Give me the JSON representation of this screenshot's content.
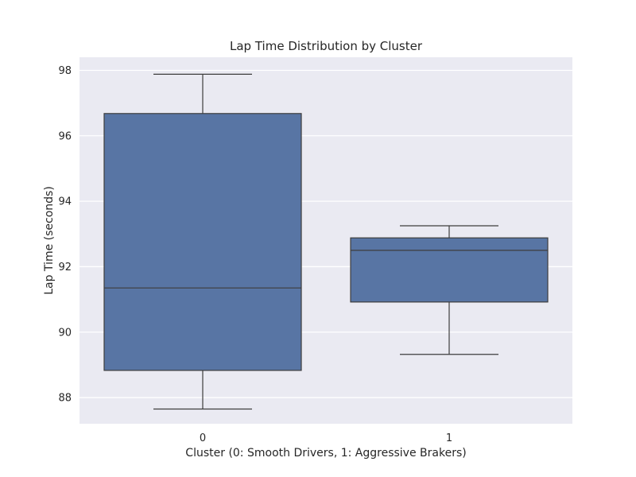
{
  "chart_data": {
    "type": "box",
    "title": "Lap Time Distribution by Cluster",
    "xlabel": "Cluster (0: Smooth Drivers, 1: Aggressive Brakers)",
    "ylabel": "Lap Time (seconds)",
    "categories": [
      "0",
      "1"
    ],
    "ylim": [
      87.2,
      98.4
    ],
    "yticks": [
      88,
      90,
      92,
      94,
      96,
      98
    ],
    "grid": true,
    "boxes": [
      {
        "category": "0",
        "whisker_low": 87.65,
        "q1": 88.83,
        "median": 91.35,
        "q3": 96.68,
        "whisker_high": 97.88
      },
      {
        "category": "1",
        "whisker_low": 89.32,
        "q1": 90.92,
        "median": 92.5,
        "q3": 92.88,
        "whisker_high": 93.25
      }
    ],
    "colors": {
      "background": "#eaeaf2",
      "box_fill": "#5875a4",
      "line": "#3d3d3d",
      "grid": "#ffffff",
      "text": "#262626"
    }
  }
}
